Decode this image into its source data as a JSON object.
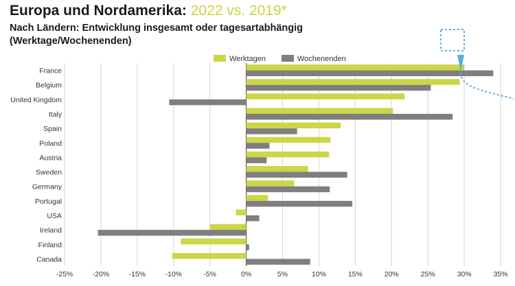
{
  "header": {
    "title_main": "Europa und Nordamerika:",
    "title_highlight": "2022 vs. 2019*",
    "subtitle_line1": "Nach Ländern: Entwicklung insgesamt oder tagesartabhängig",
    "subtitle_line2": "(Werktage/Wochenenden)"
  },
  "colors": {
    "werktagen": "#ccd647",
    "wochenenden": "#7f7f7f",
    "title_highlight": "#c9d43d",
    "annotation": "#5aaee0",
    "grid": "#d4d4d4"
  },
  "chart_data": {
    "type": "bar",
    "orientation": "horizontal",
    "categories": [
      "France",
      "Belgium",
      "United Kingdom",
      "Italy",
      "Spain",
      "Poland",
      "Austria",
      "Sweden",
      "Germany",
      "Portugal",
      "USA",
      "Ireland",
      "Finland",
      "Canada"
    ],
    "series": [
      {
        "name": "Werktagen",
        "values": [
          30,
          29.4,
          21.8,
          20.2,
          13,
          11.6,
          11.4,
          8.5,
          6.6,
          3,
          -1.4,
          -5,
          -9,
          -10.2
        ]
      },
      {
        "name": "Wochenenden",
        "values": [
          34,
          25.4,
          -10.6,
          28.4,
          7,
          3.2,
          2.8,
          13.9,
          11.5,
          14.6,
          1.8,
          -20.4,
          0.4,
          8.8
        ]
      }
    ],
    "xlim": [
      -25,
      35
    ],
    "xticks": [
      -25,
      -20,
      -15,
      -10,
      -5,
      0,
      5,
      10,
      15,
      20,
      25,
      30,
      35
    ],
    "tick_suffix": "%",
    "grid": true,
    "legend": "top-center"
  }
}
